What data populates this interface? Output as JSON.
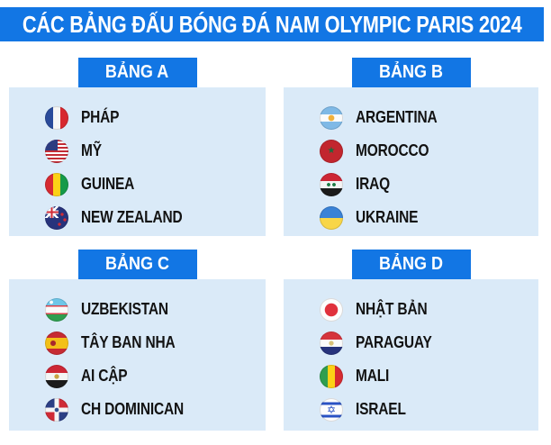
{
  "title": "CÁC BẢNG ĐẤU BÓNG ĐÁ NAM OLYMPIC PARIS 2024",
  "colors": {
    "header_bg": "#1276E4",
    "badge_bg": "#1276E4",
    "panel_bg": "#DAEAF8",
    "title_text": "#FFFFFF",
    "team_text": "#121212"
  },
  "groups": [
    {
      "label": "BẢNG A",
      "teams": [
        {
          "name": "PHÁP",
          "flag": "france"
        },
        {
          "name": "MỸ",
          "flag": "usa"
        },
        {
          "name": "GUINEA",
          "flag": "guinea"
        },
        {
          "name": "NEW ZEALAND",
          "flag": "new-zealand"
        }
      ]
    },
    {
      "label": "BẢNG B",
      "teams": [
        {
          "name": "ARGENTINA",
          "flag": "argentina"
        },
        {
          "name": "MOROCCO",
          "flag": "morocco"
        },
        {
          "name": "IRAQ",
          "flag": "iraq"
        },
        {
          "name": "UKRAINE",
          "flag": "ukraine"
        }
      ]
    },
    {
      "label": "BẢNG C",
      "teams": [
        {
          "name": "UZBEKISTAN",
          "flag": "uzbekistan"
        },
        {
          "name": "TÂY BAN NHA",
          "flag": "spain"
        },
        {
          "name": "AI CẬP",
          "flag": "egypt"
        },
        {
          "name": "CH DOMINICAN",
          "flag": "dominican-republic"
        }
      ]
    },
    {
      "label": "BẢNG D",
      "teams": [
        {
          "name": "NHẬT BẢN",
          "flag": "japan"
        },
        {
          "name": "PARAGUAY",
          "flag": "paraguay"
        },
        {
          "name": "MALI",
          "flag": "mali"
        },
        {
          "name": "ISRAEL",
          "flag": "israel"
        }
      ]
    }
  ]
}
